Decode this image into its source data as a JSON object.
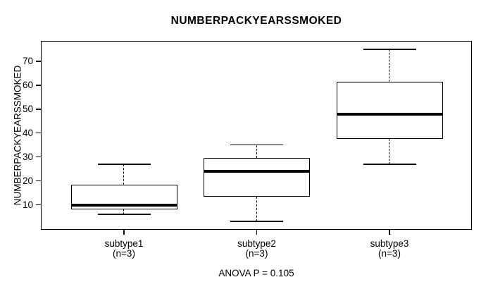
{
  "title": "NUMBERPACKYEARSSMOKED",
  "y_axis": {
    "label": "NUMBERPACKYEARSSMOKED",
    "ticks": [
      10,
      20,
      30,
      40,
      50,
      60,
      70
    ]
  },
  "colors": {
    "line": "#000000",
    "background": "#ffffff"
  },
  "chart_data": {
    "type": "boxplot",
    "title": "NUMBERPACKYEARSSMOKED",
    "ylabel": "NUMBERPACKYEARSSMOKED",
    "annotation": "ANOVA P = 0.105",
    "categories": [
      "subtype1",
      "subtype2",
      "subtype3"
    ],
    "category_sublabels": [
      "(n=3)",
      "(n=3)",
      "(n=3)"
    ],
    "yticks": [
      10,
      20,
      30,
      40,
      50,
      60,
      70
    ],
    "ylim": [
      -0.5,
      78.5
    ],
    "grid": false,
    "legend": false,
    "series": [
      {
        "name": "subtype1",
        "n": 3,
        "min": 6,
        "q1": 8,
        "median": 10,
        "q3": 18.5,
        "max": 27
      },
      {
        "name": "subtype2",
        "n": 3,
        "min": 3,
        "q1": 13.5,
        "median": 24,
        "q3": 29.5,
        "max": 35
      },
      {
        "name": "subtype3",
        "n": 3,
        "min": 27,
        "q1": 37.5,
        "median": 48,
        "q3": 61.5,
        "max": 75
      }
    ]
  }
}
